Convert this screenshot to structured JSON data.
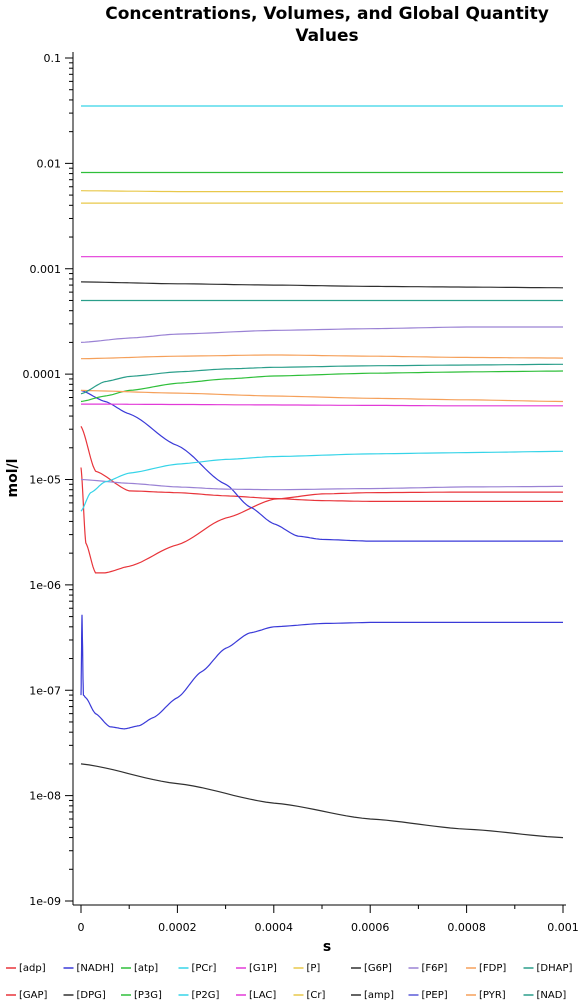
{
  "chart_data": {
    "type": "line",
    "title_lines": [
      "Concentrations, Volumes, and Global Quantity",
      "Values"
    ],
    "xlabel": "s",
    "ylabel": "mol/l",
    "x_scale": "linear",
    "y_scale": "log",
    "xlim": [
      0,
      0.001
    ],
    "ylim": [
      1e-09,
      0.1
    ],
    "x_ticks": [
      "0",
      "0.0002",
      "0.0004",
      "0.0006",
      "0.0008",
      "0.001"
    ],
    "y_ticks": [
      "0.1",
      "0.01",
      "0.001",
      "0.0001",
      "1e-05",
      "1e-06",
      "1e-07",
      "1e-08",
      "1e-09"
    ],
    "legend_position": "bottom",
    "series": [
      {
        "name": "[adp]",
        "color": "#e8343a",
        "x": [
          0,
          3e-05,
          0.0001,
          0.0002,
          0.0003,
          0.0004,
          0.0005,
          0.0006,
          0.0008,
          0.001
        ],
        "y": [
          3.2e-05,
          1.2e-05,
          7.8e-06,
          7.5e-06,
          7e-06,
          6.6e-06,
          6.3e-06,
          6.2e-06,
          6.2e-06,
          6.2e-06
        ]
      },
      {
        "name": "[adp]",
        "color": "#e8343a",
        "x": [
          0,
          1e-05,
          3e-05,
          5e-05,
          0.0001,
          0.0002,
          0.0003,
          0.0004,
          0.0005,
          0.0006,
          0.0008,
          0.001
        ],
        "y": [
          1.3e-05,
          2.5e-06,
          1.3e-06,
          1.3e-06,
          1.5e-06,
          2.4e-06,
          4.3e-06,
          6.5e-06,
          7.3e-06,
          7.5e-06,
          7.6e-06,
          7.6e-06
        ]
      },
      {
        "name": "[NADH]",
        "color": "#3a3ad8",
        "x": [
          0,
          5e-05,
          0.0001,
          0.0002,
          0.0003,
          0.00035,
          0.0004,
          0.00045,
          0.0005,
          0.0006,
          0.0008,
          0.001
        ],
        "y": [
          7e-05,
          5.5e-05,
          4.2e-05,
          2.1e-05,
          9e-06,
          5.5e-06,
          3.8e-06,
          2.9e-06,
          2.7e-06,
          2.6e-06,
          2.6e-06,
          2.6e-06
        ]
      },
      {
        "name": "[NADH]",
        "color": "#3a3ad8",
        "x": [
          0,
          2e-06,
          5e-06,
          1e-05,
          3e-05,
          6e-05,
          9e-05,
          0.00012,
          0.00015,
          0.0002,
          0.00025,
          0.0003,
          0.00035,
          0.0004,
          0.0005,
          0.0006,
          0.0008,
          0.001
        ],
        "y": [
          9e-08,
          5.2e-07,
          9e-08,
          8.5e-08,
          6e-08,
          4.5e-08,
          4.3e-08,
          4.6e-08,
          5.5e-08,
          8.5e-08,
          1.5e-07,
          2.5e-07,
          3.5e-07,
          4e-07,
          4.3e-07,
          4.4e-07,
          4.4e-07,
          4.4e-07
        ]
      },
      {
        "name": "[atp]",
        "color": "#2fbf3a",
        "x": [
          0,
          0.001
        ],
        "y": [
          0.0082,
          0.0082
        ]
      },
      {
        "name": "[PCr]",
        "color": "#36d4e8",
        "x": [
          0,
          0.001
        ],
        "y": [
          0.035,
          0.035
        ]
      },
      {
        "name": "[G1P]",
        "color": "#e23ad8",
        "x": [
          0,
          0.001
        ],
        "y": [
          0.0013,
          0.0013
        ]
      },
      {
        "name": "[P]",
        "color": "#e8c84a",
        "x": [
          0,
          0.001
        ],
        "y": [
          0.0042,
          0.0042
        ]
      },
      {
        "name": "[G6P]",
        "color": "#303030",
        "x": [
          0,
          0.0002,
          0.0004,
          0.0006,
          0.0008,
          0.001
        ],
        "y": [
          0.00075,
          0.00072,
          0.0007,
          0.00068,
          0.00067,
          0.00066
        ]
      },
      {
        "name": "[F6P]",
        "color": "#9a82d4",
        "x": [
          0,
          0.0001,
          0.0002,
          0.0004,
          0.0006,
          0.0008,
          0.001
        ],
        "y": [
          0.0002,
          0.00022,
          0.00024,
          0.00026,
          0.00027,
          0.00028,
          0.00028
        ]
      },
      {
        "name": "[F6P]",
        "color": "#9a82d4",
        "x": [
          0,
          0.0001,
          0.0002,
          0.0003,
          0.0004,
          0.0006,
          0.0008,
          0.001
        ],
        "y": [
          1e-05,
          9.2e-06,
          8.5e-06,
          8.1e-06,
          8e-06,
          8.2e-06,
          8.5e-06,
          8.6e-06
        ]
      },
      {
        "name": "[FDP]",
        "color": "#f5a05a",
        "x": [
          0,
          0.0002,
          0.0004,
          0.0006,
          0.0008,
          0.001
        ],
        "y": [
          0.00014,
          0.000148,
          0.000152,
          0.000148,
          0.000144,
          0.000142
        ]
      },
      {
        "name": "[DHAP]",
        "color": "#2a9e8a",
        "x": [
          0,
          0.001
        ],
        "y": [
          0.0005,
          0.0005
        ]
      },
      {
        "name": "[GAP]",
        "color": "#e8343a",
        "x": [],
        "y": []
      },
      {
        "name": "[DPG]",
        "color": "#303030",
        "x": [
          0,
          0.0002,
          0.0004,
          0.0006,
          0.0008,
          0.001
        ],
        "y": [
          2e-08,
          1.3e-08,
          8.5e-09,
          6e-09,
          4.8e-09,
          4e-09
        ]
      },
      {
        "name": "[P3G]",
        "color": "#2fbf3a",
        "x": [
          0,
          5e-05,
          0.0001,
          0.0002,
          0.0003,
          0.0004,
          0.0006,
          0.0008,
          0.001
        ],
        "y": [
          5.5e-05,
          6.2e-05,
          7e-05,
          8.2e-05,
          9e-05,
          9.6e-05,
          0.000102,
          0.000105,
          0.000107
        ]
      },
      {
        "name": "[P2G]",
        "color": "#36d4e8",
        "x": [
          0,
          2e-05,
          5e-05,
          0.0001,
          0.0002,
          0.0003,
          0.0004,
          0.0006,
          0.0008,
          0.001
        ],
        "y": [
          5e-06,
          7.5e-06,
          9.5e-06,
          1.15e-05,
          1.4e-05,
          1.55e-05,
          1.65e-05,
          1.75e-05,
          1.8e-05,
          1.85e-05
        ]
      },
      {
        "name": "[LAC]",
        "color": "#e23ad8",
        "x": [
          0,
          0.0002,
          0.0004,
          0.0006,
          0.0008,
          0.001
        ],
        "y": [
          5.2e-05,
          5.15e-05,
          5.1e-05,
          5.05e-05,
          5e-05,
          5e-05
        ]
      },
      {
        "name": "[Cr]",
        "color": "#e8c84a",
        "x": [
          0,
          0.0002,
          0.0004,
          0.0006,
          0.0008,
          0.001
        ],
        "y": [
          0.0055,
          0.0054,
          0.0054,
          0.0054,
          0.0054,
          0.0054
        ]
      },
      {
        "name": "[amp]",
        "color": "#303030",
        "x": [],
        "y": []
      },
      {
        "name": "[PEP]",
        "color": "#5a5ad8",
        "x": [],
        "y": []
      },
      {
        "name": "[PYR]",
        "color": "#f5a05a",
        "x": [
          0,
          0.0002,
          0.0004,
          0.0006,
          0.0008,
          0.001
        ],
        "y": [
          7e-05,
          6.6e-05,
          6.2e-05,
          5.9e-05,
          5.7e-05,
          5.5e-05
        ]
      },
      {
        "name": "[NAD]",
        "color": "#2a9e8a",
        "x": [
          0,
          5e-05,
          0.0001,
          0.0002,
          0.0003,
          0.0004,
          0.0006,
          0.0008,
          0.001
        ],
        "y": [
          6.5e-05,
          8.5e-05,
          9.5e-05,
          0.000105,
          0.000112,
          0.000116,
          0.00012,
          0.000122,
          0.000124
        ]
      }
    ],
    "legend": [
      {
        "label": "[adp]",
        "color": "#e8343a"
      },
      {
        "label": "[NADH]",
        "color": "#3a3ad8"
      },
      {
        "label": "[atp]",
        "color": "#2fbf3a"
      },
      {
        "label": "[PCr]",
        "color": "#36d4e8"
      },
      {
        "label": "[G1P]",
        "color": "#e23ad8"
      },
      {
        "label": "[P]",
        "color": "#e8c84a"
      },
      {
        "label": "[G6P]",
        "color": "#303030"
      },
      {
        "label": "[F6P]",
        "color": "#9a82d4"
      },
      {
        "label": "[FDP]",
        "color": "#f5a05a"
      },
      {
        "label": "[DHAP]",
        "color": "#2a9e8a"
      },
      {
        "label": "[GAP]",
        "color": "#e8343a"
      },
      {
        "label": "[DPG]",
        "color": "#303030"
      },
      {
        "label": "[P3G]",
        "color": "#2fbf3a"
      },
      {
        "label": "[P2G]",
        "color": "#36d4e8"
      },
      {
        "label": "[LAC]",
        "color": "#e23ad8"
      },
      {
        "label": "[Cr]",
        "color": "#e8c84a"
      },
      {
        "label": "[amp]",
        "color": "#303030"
      },
      {
        "label": "[PEP]",
        "color": "#5a5ad8"
      },
      {
        "label": "[PYR]",
        "color": "#f5a05a"
      },
      {
        "label": "[NAD]",
        "color": "#2a9e8a"
      }
    ]
  }
}
